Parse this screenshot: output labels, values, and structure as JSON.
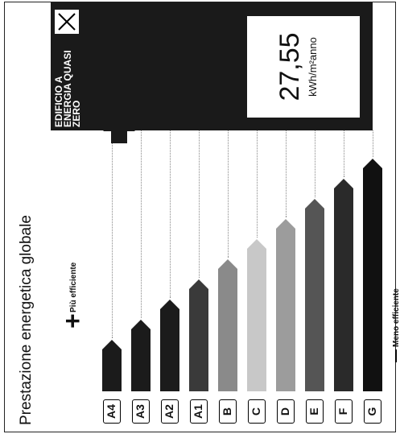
{
  "title": "Prestazione energetica globale",
  "more_efficient": "Più efficiente",
  "less_efficient": "Meno efficiente",
  "classes": [
    "A4",
    "A3",
    "A2",
    "A1",
    "B",
    "C",
    "D",
    "E",
    "F",
    "G"
  ],
  "class_colors": [
    "#1b1b1b",
    "#1b1b1b",
    "#1b1b1b",
    "#3a3a3a",
    "#8a8a8a",
    "#c8c8c8",
    "#9c9c9c",
    "#555555",
    "#2a2a2a",
    "#111111"
  ],
  "nzeb_label": "EDIFICIO A ENERGIA QUASI ZERO",
  "nzeb_checked": true,
  "value": "27,55",
  "unit": "kWh/m²anno",
  "indicated_class": "A4"
}
